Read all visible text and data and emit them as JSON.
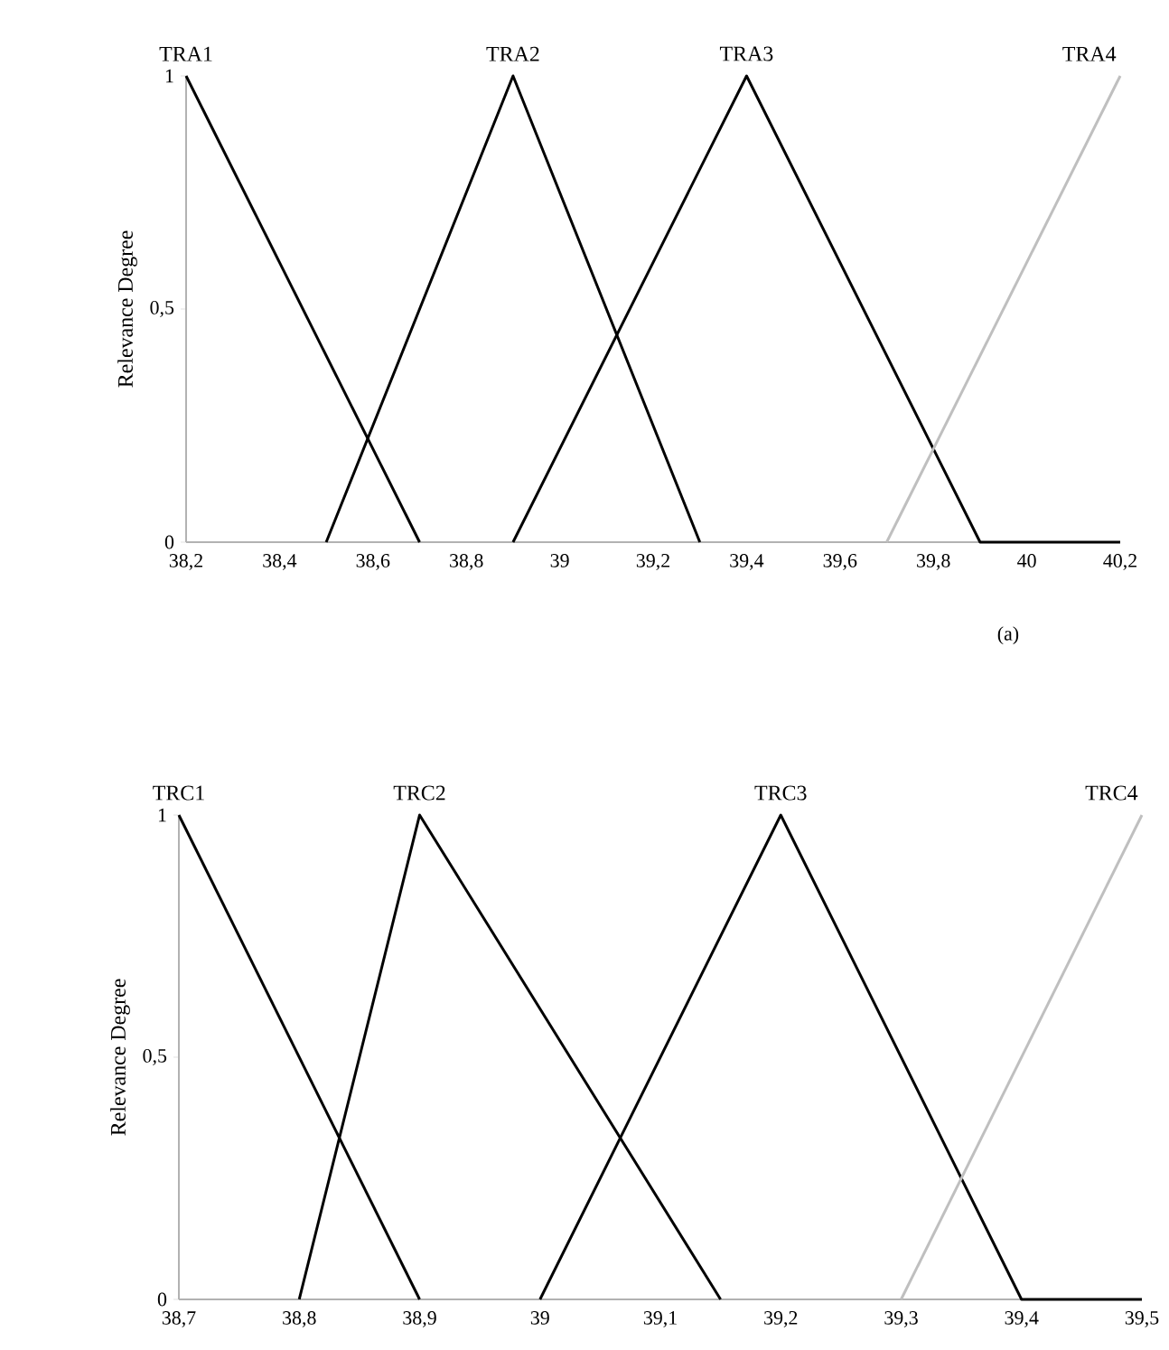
{
  "chart_data": [
    {
      "type": "line",
      "ylabel": "Relevance Degree",
      "xlim": [
        38.2,
        40.2
      ],
      "ylim": [
        0,
        1
      ],
      "xticks": [
        {
          "value": 38.2,
          "label": "38,2"
        },
        {
          "value": 38.4,
          "label": "38,4"
        },
        {
          "value": 38.6,
          "label": "38,6"
        },
        {
          "value": 38.8,
          "label": "38,8"
        },
        39,
        {
          "value": 39.2,
          "label": "39,2"
        },
        {
          "value": 39.4,
          "label": "39,4"
        },
        {
          "value": 39.6,
          "label": "39,6"
        },
        {
          "value": 39.8,
          "label": "39,8"
        },
        40,
        {
          "value": 40.2,
          "label": "40,2"
        }
      ],
      "yticks": [
        0,
        {
          "value": 0.5,
          "label": "0,5"
        },
        1
      ],
      "series": [
        {
          "name": "TRA1",
          "color": "#000000",
          "x": [
            38.2,
            38.7
          ],
          "values": [
            1,
            0
          ]
        },
        {
          "name": "TRA2",
          "color": "#000000",
          "x": [
            38.5,
            38.9,
            39.3
          ],
          "values": [
            0,
            1,
            0
          ]
        },
        {
          "name": "TRA3",
          "color": "#000000",
          "x": [
            38.9,
            39.4,
            39.9,
            40.2
          ],
          "values": [
            0,
            1,
            0,
            0
          ]
        },
        {
          "name": "TRA4",
          "color": "#bfbfbf",
          "x": [
            39.7,
            40.2
          ],
          "values": [
            0,
            1
          ]
        }
      ],
      "annotations": [
        "(a)"
      ]
    },
    {
      "type": "line",
      "ylabel": "Relevance Degree",
      "xlim": [
        38.7,
        39.5
      ],
      "ylim": [
        0,
        1
      ],
      "xticks": [
        {
          "value": 38.7,
          "label": "38,7"
        },
        {
          "value": 38.8,
          "label": "38,8"
        },
        {
          "value": 38.9,
          "label": "38,9"
        },
        39,
        {
          "value": 39.1,
          "label": "39,1"
        },
        {
          "value": 39.2,
          "label": "39,2"
        },
        {
          "value": 39.3,
          "label": "39,3"
        },
        {
          "value": 39.4,
          "label": "39,4"
        },
        {
          "value": 39.5,
          "label": "39,5"
        }
      ],
      "yticks": [
        0,
        {
          "value": 0.5,
          "label": "0,5"
        },
        1
      ],
      "series": [
        {
          "name": "TRC1",
          "color": "#000000",
          "x": [
            38.7,
            38.9
          ],
          "values": [
            1,
            0
          ]
        },
        {
          "name": "TRC2",
          "color": "#000000",
          "x": [
            38.8,
            38.9,
            39.15
          ],
          "values": [
            0,
            1,
            0
          ]
        },
        {
          "name": "TRC3",
          "color": "#000000",
          "x": [
            39.0,
            39.2,
            39.4,
            39.5
          ],
          "values": [
            0,
            1,
            0,
            0
          ]
        },
        {
          "name": "TRC4",
          "color": "#bfbfbf",
          "x": [
            39.3,
            39.5
          ],
          "values": [
            0,
            1
          ]
        }
      ]
    }
  ]
}
